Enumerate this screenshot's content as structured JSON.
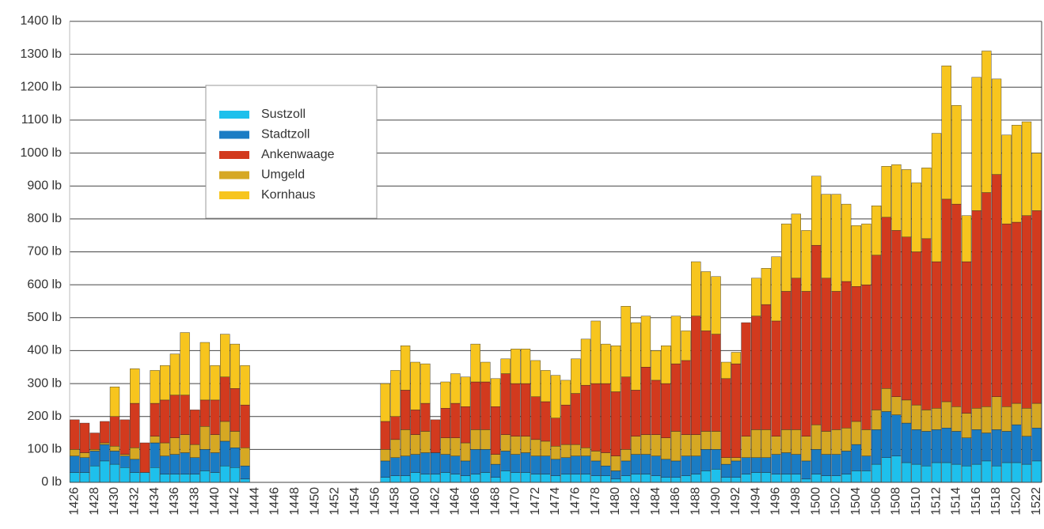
{
  "chart_data": {
    "type": "stacked-bar",
    "categories": [
      "1426",
      null,
      "1428",
      null,
      "1430",
      null,
      "1432",
      null,
      "1434",
      null,
      "1436",
      null,
      "1438",
      null,
      "1440",
      null,
      "1442",
      null,
      "1444",
      null,
      "1446",
      null,
      "1448",
      null,
      "1450",
      null,
      "1452",
      null,
      "1454",
      null,
      "1456",
      null,
      "1458",
      null,
      "1460",
      null,
      "1462",
      null,
      "1464",
      null,
      "1466",
      null,
      "1468",
      null,
      "1470",
      null,
      "1472",
      null,
      "1474",
      null,
      "1476",
      null,
      "1478",
      null,
      "1480",
      null,
      "1482",
      null,
      "1484",
      null,
      "1486",
      null,
      "1488",
      null,
      "1490",
      null,
      "1492",
      null,
      "1494",
      null,
      "1496",
      null,
      "1498",
      null,
      "1500",
      null,
      "1502",
      null,
      "1504",
      null,
      "1506",
      null,
      "1508",
      null,
      "1510",
      null,
      "1512",
      null,
      "1514",
      null,
      "1516",
      null,
      "1518",
      null,
      "1520",
      null,
      "1522"
    ],
    "series": [
      {
        "name": "Sustzoll",
        "color": "#1ec0ec",
        "values": [
          30,
          30,
          50,
          65,
          55,
          45,
          30,
          30,
          45,
          25,
          25,
          25,
          25,
          35,
          30,
          50,
          45,
          10,
          null,
          null,
          null,
          null,
          null,
          null,
          null,
          null,
          null,
          null,
          null,
          null,
          null,
          15,
          20,
          20,
          30,
          25,
          25,
          30,
          25,
          20,
          25,
          30,
          15,
          35,
          30,
          30,
          25,
          25,
          20,
          25,
          25,
          25,
          20,
          20,
          10,
          20,
          25,
          25,
          20,
          15,
          15,
          20,
          25,
          35,
          40,
          15,
          15,
          25,
          30,
          30,
          25,
          25,
          25,
          10,
          25,
          20,
          20,
          25,
          35,
          35,
          55,
          75,
          80,
          60,
          55,
          50,
          60,
          60,
          55,
          50,
          55,
          65,
          50,
          60,
          60,
          55,
          65
        ]
      },
      {
        "name": "Stadtzoll",
        "color": "#1a7cc4",
        "values": [
          50,
          45,
          45,
          50,
          40,
          35,
          40,
          0,
          75,
          55,
          60,
          65,
          50,
          65,
          60,
          75,
          60,
          40,
          null,
          null,
          null,
          null,
          null,
          null,
          null,
          null,
          null,
          null,
          null,
          null,
          null,
          50,
          55,
          60,
          55,
          65,
          65,
          55,
          55,
          45,
          75,
          70,
          40,
          60,
          55,
          60,
          55,
          55,
          50,
          50,
          55,
          55,
          45,
          30,
          25,
          45,
          60,
          60,
          60,
          55,
          50,
          60,
          55,
          65,
          60,
          40,
          50,
          50,
          45,
          45,
          60,
          65,
          60,
          55,
          75,
          65,
          65,
          70,
          80,
          45,
          105,
          140,
          125,
          120,
          105,
          105,
          100,
          105,
          100,
          85,
          105,
          85,
          110,
          95,
          115,
          85,
          100
        ]
      },
      {
        "name": "Ankenwaage",
        "color": "#d23a1e",
        "values": [
          90,
          90,
          50,
          65,
          90,
          105,
          135,
          90,
          100,
          130,
          130,
          120,
          105,
          80,
          105,
          135,
          130,
          130,
          null,
          null,
          null,
          null,
          null,
          null,
          null,
          null,
          null,
          null,
          null,
          null,
          null,
          85,
          70,
          120,
          75,
          85,
          100,
          90,
          105,
          110,
          145,
          145,
          145,
          185,
          160,
          160,
          130,
          120,
          85,
          120,
          155,
          190,
          205,
          210,
          195,
          220,
          140,
          205,
          165,
          165,
          205,
          225,
          360,
          305,
          295,
          240,
          285,
          345,
          345,
          380,
          350,
          420,
          460,
          440,
          545,
          465,
          420,
          445,
          410,
          440,
          470,
          520,
          505,
          495,
          465,
          520,
          445,
          615,
          615,
          460,
          600,
          650,
          675,
          555,
          550,
          585,
          585
        ]
      },
      {
        "name": "Umgeld",
        "color": "#d6a823",
        "values": [
          20,
          15,
          5,
          5,
          15,
          5,
          35,
          0,
          20,
          40,
          50,
          55,
          40,
          70,
          55,
          60,
          50,
          55,
          null,
          null,
          null,
          null,
          null,
          null,
          null,
          null,
          null,
          null,
          null,
          null,
          null,
          35,
          55,
          80,
          60,
          65,
          0,
          50,
          55,
          55,
          60,
          60,
          30,
          50,
          55,
          50,
          50,
          45,
          40,
          40,
          35,
          25,
          30,
          40,
          45,
          35,
          55,
          60,
          65,
          65,
          90,
          65,
          65,
          55,
          55,
          20,
          10,
          65,
          85,
          85,
          55,
          70,
          75,
          75,
          75,
          70,
          75,
          70,
          70,
          80,
          60,
          70,
          55,
          70,
          75,
          65,
          65,
          80,
          75,
          75,
          65,
          80,
          100,
          75,
          65,
          85,
          75
        ]
      },
      {
        "name": "Kornhaus",
        "color": "#f7c51e",
        "values": [
          0,
          0,
          0,
          0,
          90,
          0,
          105,
          0,
          100,
          105,
          125,
          190,
          0,
          175,
          105,
          130,
          135,
          120,
          null,
          null,
          null,
          null,
          null,
          null,
          null,
          null,
          null,
          null,
          null,
          null,
          null,
          115,
          140,
          135,
          145,
          120,
          0,
          80,
          90,
          90,
          115,
          60,
          85,
          45,
          105,
          105,
          110,
          95,
          130,
          75,
          105,
          140,
          190,
          120,
          140,
          215,
          205,
          155,
          90,
          115,
          145,
          90,
          165,
          180,
          175,
          50,
          35,
          0,
          115,
          110,
          195,
          205,
          195,
          185,
          210,
          255,
          295,
          235,
          185,
          185,
          150,
          155,
          200,
          205,
          210,
          215,
          390,
          405,
          300,
          140,
          405,
          430,
          290,
          270,
          295,
          285,
          175
        ]
      }
    ],
    "ylim": [
      0,
      1400
    ],
    "yticks": [
      {
        "value": 0,
        "label": "0 lb"
      },
      {
        "value": 100,
        "label": "100 lb"
      },
      {
        "value": 200,
        "label": "200 lb"
      },
      {
        "value": 300,
        "label": "300 lb"
      },
      {
        "value": 400,
        "label": "400 lb"
      },
      {
        "value": 500,
        "label": "500 lb"
      },
      {
        "value": 600,
        "label": "600 lb"
      },
      {
        "value": 700,
        "label": "700 lb"
      },
      {
        "value": 800,
        "label": "800 lb"
      },
      {
        "value": 900,
        "label": "900 lb"
      },
      {
        "value": 1000,
        "label": "1000 lb"
      },
      {
        "value": 1100,
        "label": "1100 lb"
      },
      {
        "value": 1200,
        "label": "1200 lb"
      },
      {
        "value": 1300,
        "label": "1300 lb"
      },
      {
        "value": 1400,
        "label": "1400 lb"
      }
    ],
    "grid": true
  }
}
